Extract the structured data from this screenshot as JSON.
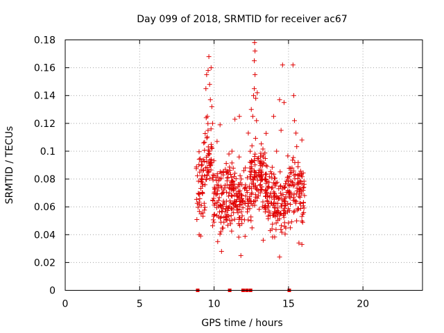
{
  "chart_data": {
    "type": "scatter",
    "title": "Day 099 of 2018, SRMTID for receiver ac67",
    "xlabel": "GPS time / hours",
    "ylabel": "SRMTID / TECUs",
    "xlim": [
      0,
      24
    ],
    "ylim": [
      0,
      0.18
    ],
    "xticks": [
      0,
      5,
      10,
      15,
      20
    ],
    "yticks": [
      0,
      0.02,
      0.04,
      0.06,
      0.08,
      0.1,
      0.12,
      0.14,
      0.16,
      0.18
    ],
    "xtick_labels": [
      "0",
      "5",
      "10",
      "15",
      "20"
    ],
    "ytick_labels": [
      "0",
      "0.02",
      "0.04",
      "0.06",
      "0.08",
      "0.1",
      "0.12",
      "0.14",
      "0.16",
      "0.18"
    ],
    "grid": true,
    "marker": "+",
    "color": "#e00000",
    "zero_points_x": [
      8.9,
      11.05,
      11.95,
      12.2,
      12.45,
      15.05
    ],
    "clusters": [
      {
        "x": [
          8.8,
          9.4
        ],
        "y": [
          0.04,
          0.11
        ],
        "n": 50
      },
      {
        "x": [
          9.3,
          9.9
        ],
        "y": [
          0.06,
          0.13
        ],
        "n": 45
      },
      {
        "x": [
          9.9,
          11.5
        ],
        "y": [
          0.03,
          0.1
        ],
        "n": 160
      },
      {
        "x": [
          11.5,
          12.4
        ],
        "y": [
          0.03,
          0.1
        ],
        "n": 70
      },
      {
        "x": [
          12.4,
          13.5
        ],
        "y": [
          0.04,
          0.12
        ],
        "n": 120
      },
      {
        "x": [
          13.4,
          14.8
        ],
        "y": [
          0.03,
          0.1
        ],
        "n": 130
      },
      {
        "x": [
          14.8,
          16.1
        ],
        "y": [
          0.035,
          0.11
        ],
        "n": 110
      }
    ],
    "points": [
      [
        9.45,
        0.145
      ],
      [
        9.5,
        0.155
      ],
      [
        9.6,
        0.158
      ],
      [
        9.65,
        0.168
      ],
      [
        9.7,
        0.148
      ],
      [
        9.8,
        0.16
      ],
      [
        9.55,
        0.125
      ],
      [
        9.75,
        0.137
      ],
      [
        9.9,
        0.12
      ],
      [
        9.85,
        0.132
      ],
      [
        10.4,
        0.119
      ],
      [
        10.2,
        0.107
      ],
      [
        12.3,
        0.113
      ],
      [
        12.6,
        0.125
      ],
      [
        12.65,
        0.14
      ],
      [
        12.7,
        0.145
      ],
      [
        12.8,
        0.138
      ],
      [
        12.9,
        0.142
      ],
      [
        12.75,
        0.155
      ],
      [
        12.7,
        0.165
      ],
      [
        12.75,
        0.172
      ],
      [
        12.72,
        0.178
      ],
      [
        12.5,
        0.13
      ],
      [
        12.85,
        0.122
      ],
      [
        14.0,
        0.125
      ],
      [
        14.2,
        0.1
      ],
      [
        14.4,
        0.137
      ],
      [
        14.5,
        0.115
      ],
      [
        14.6,
        0.162
      ],
      [
        14.7,
        0.135
      ],
      [
        15.3,
        0.162
      ],
      [
        15.35,
        0.14
      ],
      [
        15.4,
        0.122
      ],
      [
        15.5,
        0.113
      ],
      [
        15.9,
        0.108
      ],
      [
        11.4,
        0.123
      ],
      [
        11.7,
        0.125
      ],
      [
        11.0,
        0.098
      ],
      [
        11.2,
        0.1
      ],
      [
        9.0,
        0.04
      ],
      [
        9.1,
        0.039
      ],
      [
        11.8,
        0.025
      ],
      [
        10.5,
        0.028
      ],
      [
        14.4,
        0.024
      ],
      [
        13.3,
        0.036
      ],
      [
        15.7,
        0.034
      ],
      [
        15.9,
        0.033
      ],
      [
        12.0,
        0.086
      ],
      [
        12.1,
        0.088
      ]
    ]
  }
}
